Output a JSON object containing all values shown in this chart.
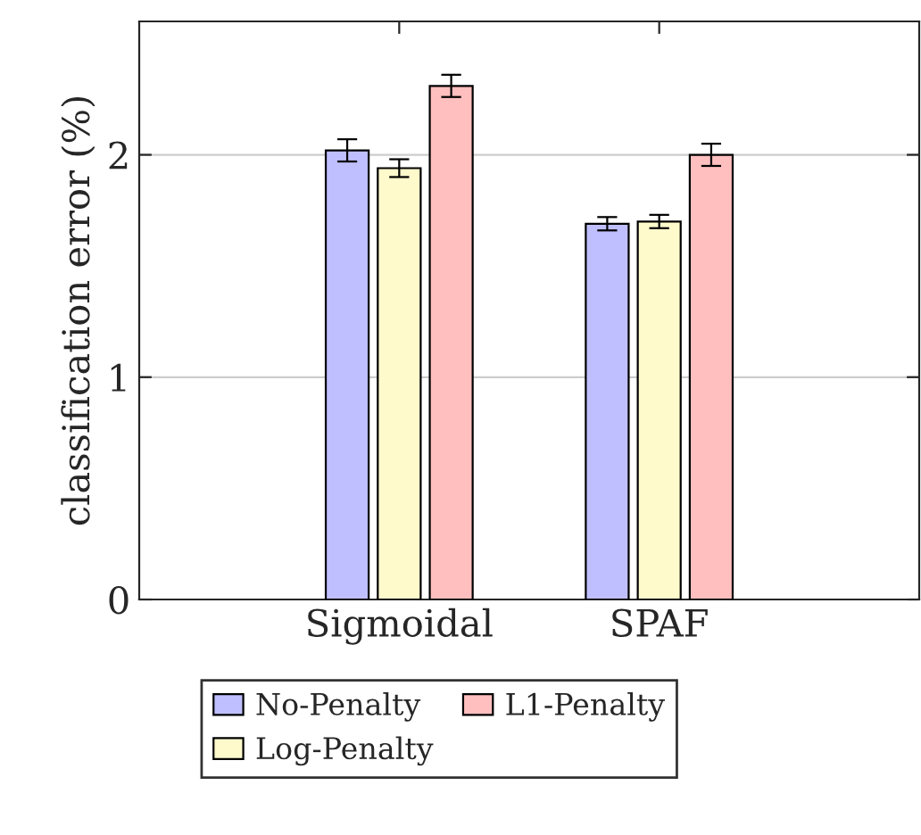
{
  "chart_data": {
    "type": "bar",
    "ylabel": "classification error (%)",
    "categories": [
      "Sigmoidal",
      "SPAF"
    ],
    "series": [
      {
        "name": "No-Penalty",
        "color": "#bfbfff",
        "values": [
          2.02,
          1.69
        ],
        "errors": [
          0.05,
          0.03
        ]
      },
      {
        "name": "Log-Penalty",
        "color": "#fffacc",
        "values": [
          1.94,
          1.7
        ],
        "errors": [
          0.04,
          0.03
        ]
      },
      {
        "name": "L1-Penalty",
        "color": "#ffbfbf",
        "values": [
          2.31,
          2.0
        ],
        "errors": [
          0.05,
          0.05
        ]
      }
    ],
    "ylim": [
      0,
      2.6
    ],
    "yticks": [
      0,
      1,
      2
    ],
    "grid": "y",
    "legend": "bottom"
  }
}
